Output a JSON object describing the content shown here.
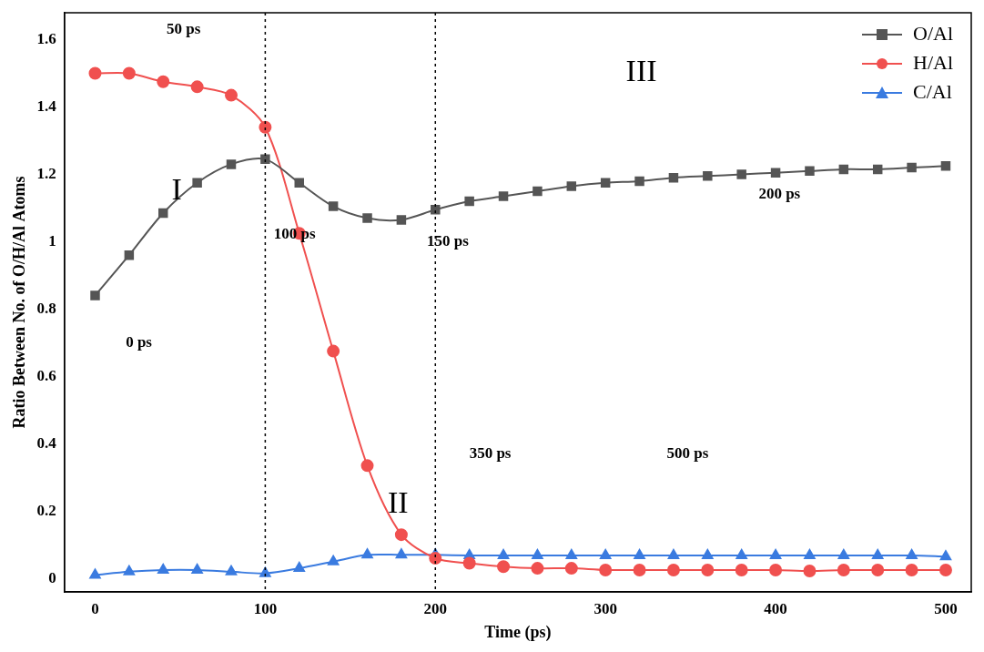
{
  "chart_data": {
    "type": "line",
    "x_label": "Time (ps)",
    "y_label": "Ratio Between No. of O/H/Al Atoms",
    "x": [
      0,
      20,
      40,
      60,
      80,
      100,
      120,
      140,
      160,
      180,
      200,
      220,
      240,
      260,
      280,
      300,
      320,
      340,
      360,
      380,
      400,
      420,
      440,
      460,
      480,
      500
    ],
    "series": [
      {
        "name": "O/Al",
        "color": "#555555",
        "marker": "square",
        "values": [
          0.84,
          0.96,
          1.085,
          1.175,
          1.23,
          1.245,
          1.175,
          1.105,
          1.07,
          1.065,
          1.095,
          1.12,
          1.135,
          1.15,
          1.165,
          1.175,
          1.18,
          1.19,
          1.195,
          1.2,
          1.205,
          1.21,
          1.215,
          1.215,
          1.22,
          1.225
        ]
      },
      {
        "name": "H/Al",
        "color": "#f0504f",
        "marker": "circle",
        "values": [
          1.5,
          1.5,
          1.475,
          1.46,
          1.435,
          1.34,
          1.025,
          0.675,
          0.335,
          0.13,
          0.06,
          0.045,
          0.035,
          0.03,
          0.03,
          0.025,
          0.025,
          0.025,
          0.025,
          0.025,
          0.025,
          0.022,
          0.025,
          0.025,
          0.025,
          0.025
        ]
      },
      {
        "name": "C/Al",
        "color": "#3a7be0",
        "marker": "triangle",
        "values": [
          0.01,
          0.02,
          0.025,
          0.025,
          0.02,
          0.015,
          0.03,
          0.05,
          0.07,
          0.07,
          0.07,
          0.068,
          0.068,
          0.068,
          0.068,
          0.068,
          0.068,
          0.068,
          0.068,
          0.068,
          0.068,
          0.068,
          0.068,
          0.068,
          0.068,
          0.065
        ]
      }
    ],
    "xlim": [
      -18,
      515
    ],
    "xticks": [
      0,
      100,
      200,
      300,
      400,
      500
    ],
    "ylim": [
      -0.04,
      1.68
    ],
    "yticks": [
      0,
      0.2,
      0.4,
      0.6,
      0.8,
      1,
      1.2,
      1.4,
      1.6
    ],
    "grid": false,
    "legend": "upper right",
    "vlines": [
      100,
      200
    ],
    "annotations": [
      "I",
      "II",
      "III",
      "0 ps",
      "50 ps",
      "100 ps",
      "150 ps",
      "200 ps",
      "350 ps",
      "500 ps"
    ]
  }
}
